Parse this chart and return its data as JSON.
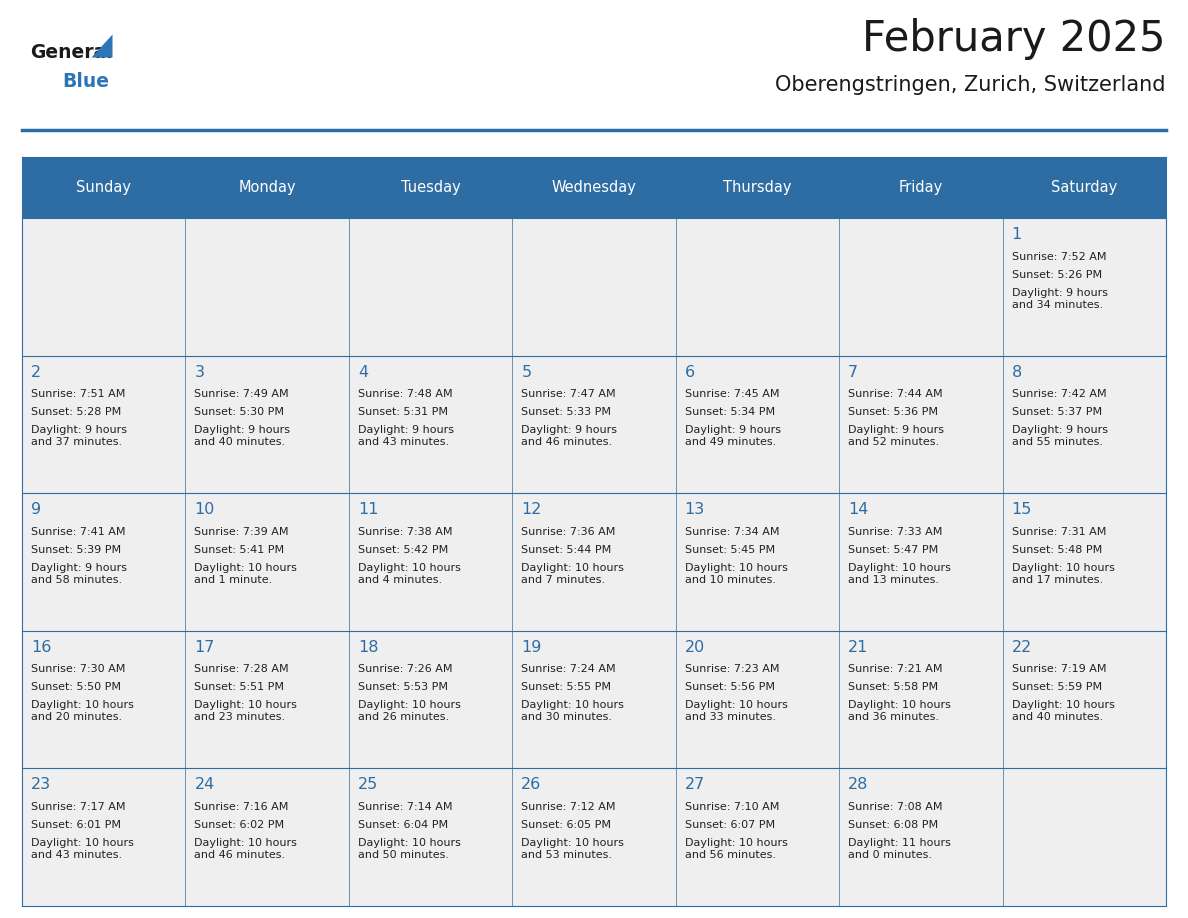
{
  "title": "February 2025",
  "subtitle": "Oberengstringen, Zurich, Switzerland",
  "header_bg": "#2e6da4",
  "header_text": "#ffffff",
  "cell_bg": "#efefef",
  "border_color": "#2e6da4",
  "day_names": [
    "Sunday",
    "Monday",
    "Tuesday",
    "Wednesday",
    "Thursday",
    "Friday",
    "Saturday"
  ],
  "title_color": "#1a1a1a",
  "subtitle_color": "#1a1a1a",
  "logo_general_color": "#1a1a1a",
  "logo_blue_color": "#2e75b6",
  "cell_text_color": "#222222",
  "day_num_color": "#2e6da4",
  "weeks": [
    [
      {
        "day": null,
        "sunrise": null,
        "sunset": null,
        "daylight": null
      },
      {
        "day": null,
        "sunrise": null,
        "sunset": null,
        "daylight": null
      },
      {
        "day": null,
        "sunrise": null,
        "sunset": null,
        "daylight": null
      },
      {
        "day": null,
        "sunrise": null,
        "sunset": null,
        "daylight": null
      },
      {
        "day": null,
        "sunrise": null,
        "sunset": null,
        "daylight": null
      },
      {
        "day": null,
        "sunrise": null,
        "sunset": null,
        "daylight": null
      },
      {
        "day": 1,
        "sunrise": "7:52 AM",
        "sunset": "5:26 PM",
        "daylight": "9 hours\nand 34 minutes."
      }
    ],
    [
      {
        "day": 2,
        "sunrise": "7:51 AM",
        "sunset": "5:28 PM",
        "daylight": "9 hours\nand 37 minutes."
      },
      {
        "day": 3,
        "sunrise": "7:49 AM",
        "sunset": "5:30 PM",
        "daylight": "9 hours\nand 40 minutes."
      },
      {
        "day": 4,
        "sunrise": "7:48 AM",
        "sunset": "5:31 PM",
        "daylight": "9 hours\nand 43 minutes."
      },
      {
        "day": 5,
        "sunrise": "7:47 AM",
        "sunset": "5:33 PM",
        "daylight": "9 hours\nand 46 minutes."
      },
      {
        "day": 6,
        "sunrise": "7:45 AM",
        "sunset": "5:34 PM",
        "daylight": "9 hours\nand 49 minutes."
      },
      {
        "day": 7,
        "sunrise": "7:44 AM",
        "sunset": "5:36 PM",
        "daylight": "9 hours\nand 52 minutes."
      },
      {
        "day": 8,
        "sunrise": "7:42 AM",
        "sunset": "5:37 PM",
        "daylight": "9 hours\nand 55 minutes."
      }
    ],
    [
      {
        "day": 9,
        "sunrise": "7:41 AM",
        "sunset": "5:39 PM",
        "daylight": "9 hours\nand 58 minutes."
      },
      {
        "day": 10,
        "sunrise": "7:39 AM",
        "sunset": "5:41 PM",
        "daylight": "10 hours\nand 1 minute."
      },
      {
        "day": 11,
        "sunrise": "7:38 AM",
        "sunset": "5:42 PM",
        "daylight": "10 hours\nand 4 minutes."
      },
      {
        "day": 12,
        "sunrise": "7:36 AM",
        "sunset": "5:44 PM",
        "daylight": "10 hours\nand 7 minutes."
      },
      {
        "day": 13,
        "sunrise": "7:34 AM",
        "sunset": "5:45 PM",
        "daylight": "10 hours\nand 10 minutes."
      },
      {
        "day": 14,
        "sunrise": "7:33 AM",
        "sunset": "5:47 PM",
        "daylight": "10 hours\nand 13 minutes."
      },
      {
        "day": 15,
        "sunrise": "7:31 AM",
        "sunset": "5:48 PM",
        "daylight": "10 hours\nand 17 minutes."
      }
    ],
    [
      {
        "day": 16,
        "sunrise": "7:30 AM",
        "sunset": "5:50 PM",
        "daylight": "10 hours\nand 20 minutes."
      },
      {
        "day": 17,
        "sunrise": "7:28 AM",
        "sunset": "5:51 PM",
        "daylight": "10 hours\nand 23 minutes."
      },
      {
        "day": 18,
        "sunrise": "7:26 AM",
        "sunset": "5:53 PM",
        "daylight": "10 hours\nand 26 minutes."
      },
      {
        "day": 19,
        "sunrise": "7:24 AM",
        "sunset": "5:55 PM",
        "daylight": "10 hours\nand 30 minutes."
      },
      {
        "day": 20,
        "sunrise": "7:23 AM",
        "sunset": "5:56 PM",
        "daylight": "10 hours\nand 33 minutes."
      },
      {
        "day": 21,
        "sunrise": "7:21 AM",
        "sunset": "5:58 PM",
        "daylight": "10 hours\nand 36 minutes."
      },
      {
        "day": 22,
        "sunrise": "7:19 AM",
        "sunset": "5:59 PM",
        "daylight": "10 hours\nand 40 minutes."
      }
    ],
    [
      {
        "day": 23,
        "sunrise": "7:17 AM",
        "sunset": "6:01 PM",
        "daylight": "10 hours\nand 43 minutes."
      },
      {
        "day": 24,
        "sunrise": "7:16 AM",
        "sunset": "6:02 PM",
        "daylight": "10 hours\nand 46 minutes."
      },
      {
        "day": 25,
        "sunrise": "7:14 AM",
        "sunset": "6:04 PM",
        "daylight": "10 hours\nand 50 minutes."
      },
      {
        "day": 26,
        "sunrise": "7:12 AM",
        "sunset": "6:05 PM",
        "daylight": "10 hours\nand 53 minutes."
      },
      {
        "day": 27,
        "sunrise": "7:10 AM",
        "sunset": "6:07 PM",
        "daylight": "10 hours\nand 56 minutes."
      },
      {
        "day": 28,
        "sunrise": "7:08 AM",
        "sunset": "6:08 PM",
        "daylight": "11 hours\nand 0 minutes."
      },
      {
        "day": null,
        "sunrise": null,
        "sunset": null,
        "daylight": null
      }
    ]
  ]
}
